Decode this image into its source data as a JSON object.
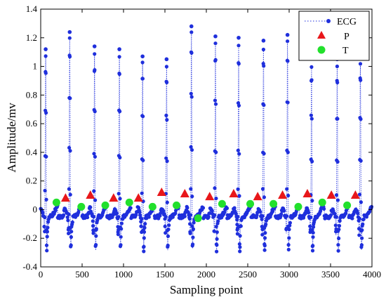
{
  "chart_data": {
    "type": "line",
    "title": "",
    "xlabel": "Sampling point",
    "ylabel": "Amplitude/mv",
    "xlim": [
      0,
      4000
    ],
    "ylim": [
      -0.4,
      1.4
    ],
    "xticks": [
      0,
      500,
      1000,
      1500,
      2000,
      2500,
      3000,
      3500,
      4000
    ],
    "yticks": [
      -0.4,
      -0.2,
      0,
      0.2,
      0.4,
      0.6,
      0.8,
      1,
      1.2,
      1.4
    ],
    "ytick_labels": [
      "-0.4",
      "-0.2",
      "0",
      "0.2",
      "0.4",
      "0.6",
      "0.8",
      "1",
      "1.2",
      "1.4"
    ],
    "legend_position": "top-right",
    "grid": false,
    "series": [
      {
        "name": "ECG",
        "style": "dotted line with dot markers",
        "color": "#1f2fdc",
        "r_peaks": [
          {
            "x": 60,
            "y": 1.12
          },
          {
            "x": 350,
            "y": 1.24
          },
          {
            "x": 650,
            "y": 1.14
          },
          {
            "x": 950,
            "y": 1.12
          },
          {
            "x": 1230,
            "y": 1.07
          },
          {
            "x": 1520,
            "y": 1.05
          },
          {
            "x": 1820,
            "y": 1.28
          },
          {
            "x": 2110,
            "y": 1.21
          },
          {
            "x": 2390,
            "y": 1.2
          },
          {
            "x": 2690,
            "y": 1.18
          },
          {
            "x": 2980,
            "y": 1.22
          },
          {
            "x": 3270,
            "y": 1.06
          },
          {
            "x": 3580,
            "y": 1.05
          },
          {
            "x": 3860,
            "y": 1.06
          }
        ]
      },
      {
        "name": "P",
        "marker": "triangle",
        "color": "#e8171a",
        "points": [
          {
            "x": 300,
            "y": 0.08
          },
          {
            "x": 600,
            "y": 0.1
          },
          {
            "x": 880,
            "y": 0.08
          },
          {
            "x": 1180,
            "y": 0.08
          },
          {
            "x": 1460,
            "y": 0.12
          },
          {
            "x": 1740,
            "y": 0.11
          },
          {
            "x": 2040,
            "y": 0.09
          },
          {
            "x": 2330,
            "y": 0.11
          },
          {
            "x": 2620,
            "y": 0.09
          },
          {
            "x": 2920,
            "y": 0.1
          },
          {
            "x": 3220,
            "y": 0.11
          },
          {
            "x": 3510,
            "y": 0.1
          },
          {
            "x": 3800,
            "y": 0.1
          }
        ]
      },
      {
        "name": "T",
        "marker": "circle",
        "color": "#22e02c",
        "points": [
          {
            "x": 190,
            "y": 0.05
          },
          {
            "x": 490,
            "y": 0.02
          },
          {
            "x": 780,
            "y": 0.03
          },
          {
            "x": 1070,
            "y": 0.05
          },
          {
            "x": 1350,
            "y": 0.02
          },
          {
            "x": 1640,
            "y": 0.03
          },
          {
            "x": 1900,
            "y": -0.06
          },
          {
            "x": 2190,
            "y": 0.04
          },
          {
            "x": 2530,
            "y": 0.04
          },
          {
            "x": 2810,
            "y": 0.04
          },
          {
            "x": 3110,
            "y": 0.02
          },
          {
            "x": 3400,
            "y": 0.05
          },
          {
            "x": 3700,
            "y": 0.03
          }
        ]
      }
    ]
  }
}
